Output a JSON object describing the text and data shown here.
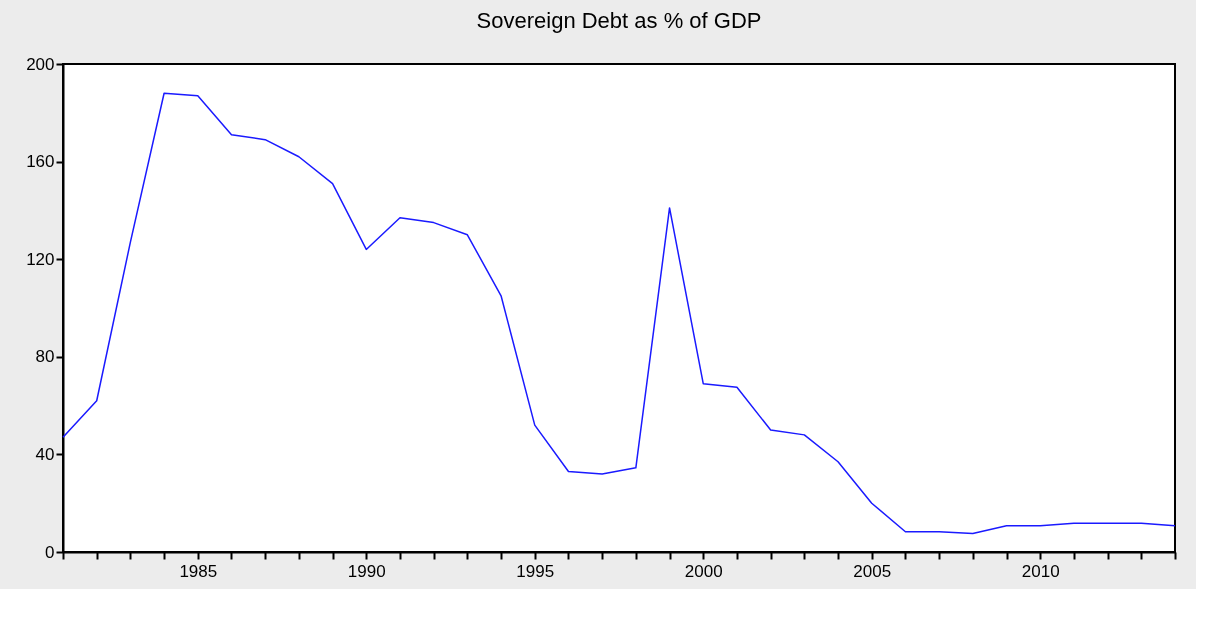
{
  "chart_data": {
    "type": "line",
    "title": "Sovereign Debt as % of GDP",
    "x": [
      1981,
      1982,
      1983,
      1984,
      1985,
      1986,
      1987,
      1988,
      1989,
      1990,
      1991,
      1992,
      1993,
      1994,
      1995,
      1996,
      1997,
      1998,
      1999,
      2000,
      2001,
      2002,
      2003,
      2004,
      2005,
      2006,
      2007,
      2008,
      2009,
      2010,
      2011,
      2012,
      2013,
      2014
    ],
    "series": [
      {
        "color": "#1a1aff",
        "values": [
          47,
          62,
          127,
          188,
          187,
          171,
          169,
          162,
          151,
          124,
          137,
          135,
          130,
          105,
          52,
          33,
          32,
          34.5,
          141,
          69,
          67.5,
          50,
          48,
          37,
          20,
          8.3,
          8.3,
          7.6,
          10.8,
          10.8,
          11.8,
          11.8,
          11.8,
          10.8
        ]
      }
    ],
    "xlim": [
      1981,
      2014
    ],
    "ylim": [
      0,
      200
    ],
    "yticks": [
      0,
      40,
      80,
      120,
      160,
      200
    ],
    "xticks": [
      {
        "value": 1981,
        "label": null
      },
      {
        "value": 1982,
        "label": null
      },
      {
        "value": 1983,
        "label": null
      },
      {
        "value": 1984,
        "label": null
      },
      1985,
      {
        "value": 1986,
        "label": null
      },
      {
        "value": 1987,
        "label": null
      },
      {
        "value": 1988,
        "label": null
      },
      {
        "value": 1989,
        "label": null
      },
      1990,
      {
        "value": 1991,
        "label": null
      },
      {
        "value": 1992,
        "label": null
      },
      {
        "value": 1993,
        "label": null
      },
      {
        "value": 1994,
        "label": null
      },
      1995,
      {
        "value": 1996,
        "label": null
      },
      {
        "value": 1997,
        "label": null
      },
      {
        "value": 1998,
        "label": null
      },
      {
        "value": 1999,
        "label": null
      },
      2000,
      {
        "value": 2001,
        "label": null
      },
      {
        "value": 2002,
        "label": null
      },
      {
        "value": 2003,
        "label": null
      },
      {
        "value": 2004,
        "label": null
      },
      2005,
      {
        "value": 2006,
        "label": null
      },
      {
        "value": 2007,
        "label": null
      },
      {
        "value": 2008,
        "label": null
      },
      {
        "value": 2009,
        "label": null
      },
      2010,
      {
        "value": 2011,
        "label": null
      },
      {
        "value": 2012,
        "label": null
      },
      {
        "value": 2013,
        "label": null
      },
      {
        "value": 2014,
        "label": null
      }
    ],
    "grid": false,
    "marker": "none",
    "line_style": "solid"
  }
}
